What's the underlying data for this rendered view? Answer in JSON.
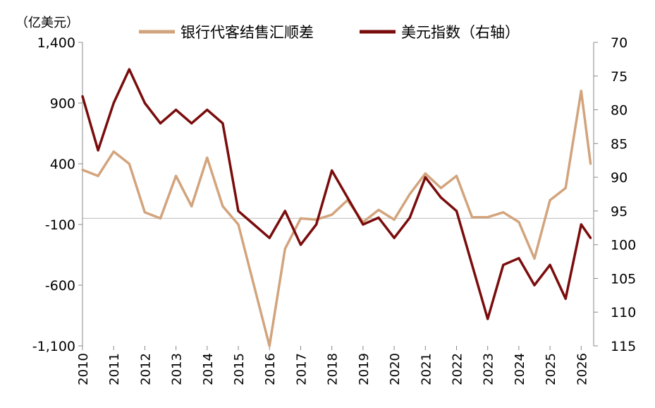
{
  "chart_data": {
    "type": "line",
    "unit_left": "（亿美元）",
    "legend_position": "top-center",
    "grid": false,
    "x": [
      "2010",
      "2010.5",
      "2011",
      "2011.5",
      "2012",
      "2012.5",
      "2013",
      "2013.5",
      "2014",
      "2014.5",
      "2015",
      "2015.5",
      "2016",
      "2016.5",
      "2017",
      "2017.5",
      "2018",
      "2018.5",
      "2019",
      "2019.5",
      "2020",
      "2020.5",
      "2021",
      "2021.5",
      "2022",
      "2022.5",
      "2023",
      "2023.5",
      "2024",
      "2024.5",
      "2025",
      "2025.5",
      "2026",
      "2026.3"
    ],
    "x_ticks": [
      "2010",
      "2011",
      "2012",
      "2013",
      "2014",
      "2015",
      "2016",
      "2017",
      "2018",
      "2019",
      "2020",
      "2021",
      "2022",
      "2023",
      "2024",
      "2025",
      "2026"
    ],
    "y_left": {
      "ticks": [
        "1,400",
        "900",
        "400",
        "-100",
        "-600",
        "-1,100"
      ],
      "ylim": [
        -1100,
        1400
      ]
    },
    "y_right": {
      "ticks": [
        "70",
        "75",
        "80",
        "85",
        "90",
        "95",
        "100",
        "105",
        "110",
        "115"
      ],
      "ylim": [
        115,
        70
      ],
      "inverted": true
    },
    "reference_line_left_value": -50,
    "series": [
      {
        "name": "银行代客结售汇顺差",
        "axis": "left",
        "color": "#d2a47d",
        "values": [
          350,
          300,
          500,
          400,
          0,
          -50,
          300,
          50,
          450,
          50,
          -100,
          -600,
          -1100,
          -300,
          -50,
          -60,
          -20,
          100,
          -80,
          20,
          -60,
          150,
          320,
          200,
          300,
          -40,
          -40,
          0,
          -80,
          -380,
          100,
          200,
          1000,
          400
        ]
      },
      {
        "name": "美元指数（右轴）",
        "axis": "right",
        "color": "#7a0c0c",
        "values": [
          78,
          86,
          79,
          74,
          79,
          82,
          80,
          82,
          80,
          82,
          95,
          97,
          99,
          95,
          100,
          97,
          89,
          93,
          97,
          96,
          99,
          96,
          90,
          93,
          95,
          103,
          111,
          103,
          102,
          106,
          103,
          108,
          97,
          99
        ]
      }
    ]
  }
}
